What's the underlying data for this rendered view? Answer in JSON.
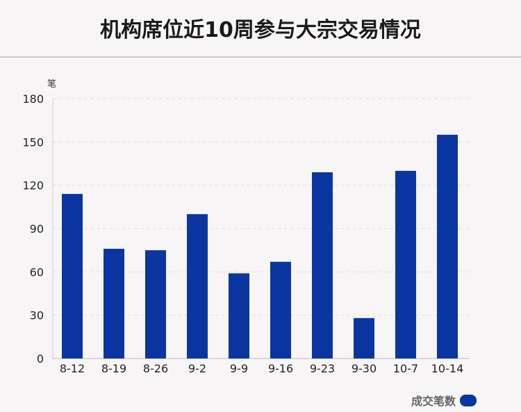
{
  "title": "机构席位近10周参与大宗交易情况",
  "chart_data": {
    "type": "bar",
    "categories": [
      "8-12",
      "8-19",
      "8-26",
      "9-2",
      "9-9",
      "9-16",
      "9-23",
      "9-30",
      "10-7",
      "10-14"
    ],
    "series": [
      {
        "name": "成交笔数",
        "values": [
          114,
          76,
          75,
          100,
          59,
          67,
          129,
          28,
          130,
          155
        ]
      }
    ],
    "ylabel": "笔",
    "ylim": [
      0,
      180
    ],
    "yticks": [
      0,
      30,
      60,
      90,
      120,
      150,
      180
    ],
    "grid": true,
    "legend": "bottom-right",
    "bar_color": "#0b35a0"
  }
}
